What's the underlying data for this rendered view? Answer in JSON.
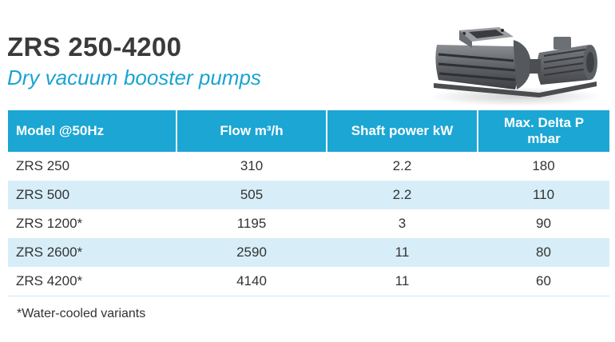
{
  "heading": {
    "title": "ZRS 250-4200",
    "subtitle": "Dry vacuum booster pumps"
  },
  "image": {
    "icon": "vacuum-pump-illustration"
  },
  "table": {
    "columns": [
      "Model @50Hz",
      "Flow m³/h",
      "Shaft power kW",
      "Max. Delta P",
      "mbar"
    ],
    "rows": [
      {
        "model": "ZRS 250",
        "flow": "310",
        "power": "2.2",
        "delta": "180"
      },
      {
        "model": "ZRS 500",
        "flow": "505",
        "power": "2.2",
        "delta": "110"
      },
      {
        "model": "ZRS 1200*",
        "flow": "1195",
        "power": "3",
        "delta": "90"
      },
      {
        "model": "ZRS 2600*",
        "flow": "2590",
        "power": "11",
        "delta": "80"
      },
      {
        "model": "ZRS 4200*",
        "flow": "4140",
        "power": "11",
        "delta": "60"
      }
    ]
  },
  "footnote": "*Water-cooled variants",
  "colors": {
    "accent": "#1ba6d4",
    "row_alt": "#d7eef8",
    "title": "#3a3a3a"
  }
}
